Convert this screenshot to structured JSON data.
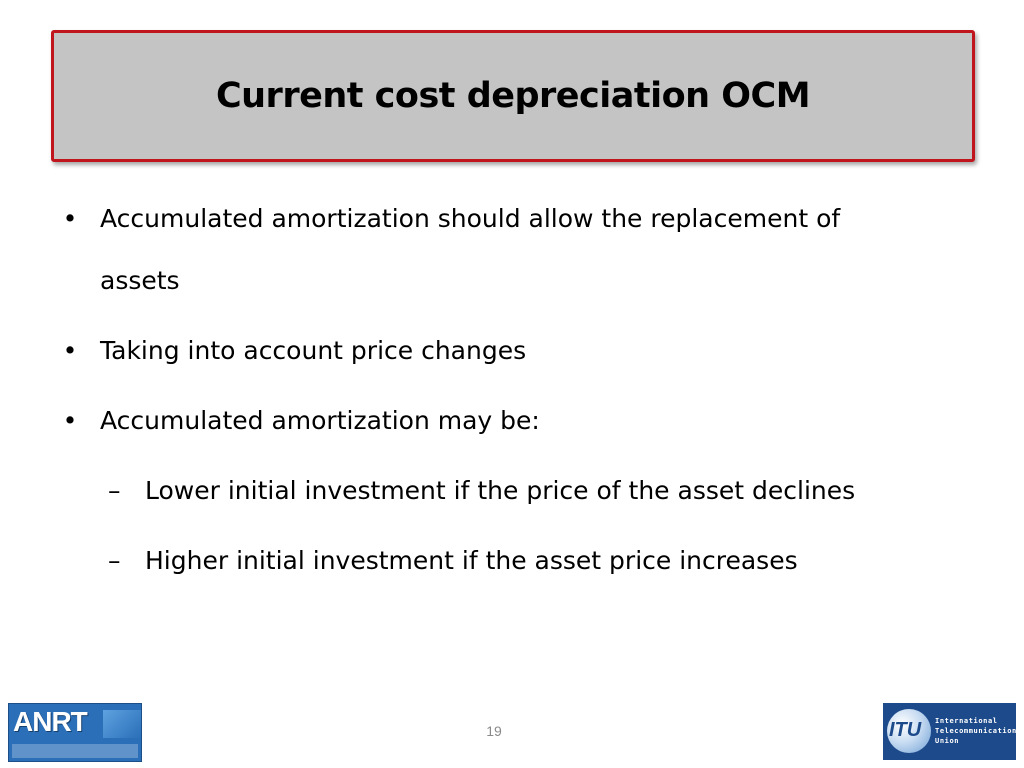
{
  "slide": {
    "title": "Current cost depreciation OCM",
    "bullets": [
      {
        "marker": "•",
        "line1": "Accumulated amortization should allow the replacement of",
        "line2": "assets"
      },
      {
        "marker": "•",
        "text": "Taking into account price changes"
      },
      {
        "marker": "•",
        "text": "Accumulated amortization may be:"
      }
    ],
    "sub_bullets": [
      {
        "marker": "–",
        "text": "Lower initial investment if the price of the asset declines"
      },
      {
        "marker": "–",
        "text": "Higher initial investment if the asset price increases"
      }
    ],
    "page_number": "19"
  },
  "footer": {
    "left_logo": {
      "name": "ANRT",
      "icon": "anrt-logo"
    },
    "right_logo": {
      "letters": "ITU",
      "line1": "International",
      "line2": "Telecommunication",
      "line3": "Union",
      "icon": "itu-logo"
    }
  },
  "colors": {
    "title_bg": "#c4c4c4",
    "title_border": "#c0151c",
    "itu_blue": "#1d4a8a",
    "anrt_blue": "#2a6fb8"
  }
}
